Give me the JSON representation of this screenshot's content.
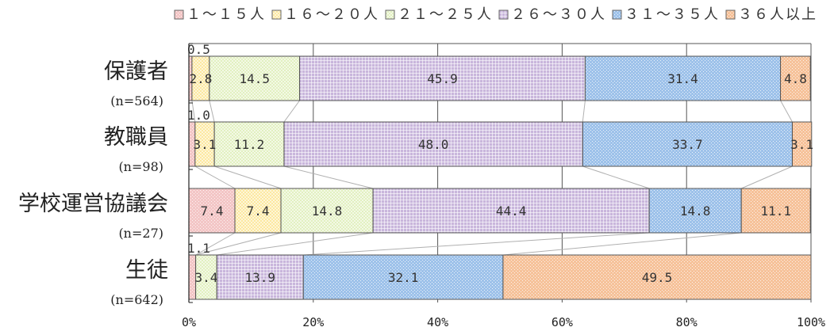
{
  "chart_data": {
    "type": "bar",
    "orientation": "horizontal",
    "stacked": "percent",
    "categories": [
      {
        "name": "保護者",
        "n": "(n=564)"
      },
      {
        "name": "教職員",
        "n": "(n=98)"
      },
      {
        "name": "学校運営協議会",
        "n": "(n=27)"
      },
      {
        "name": "生徒",
        "n": "(n=642)"
      }
    ],
    "series": [
      {
        "name": "１～１５人",
        "color": "#f3c6c6",
        "pattern": "dots",
        "values": [
          0.5,
          1.0,
          7.4,
          1.1
        ],
        "labels": [
          "0.5",
          "1.0",
          "7.4",
          "1.1"
        ]
      },
      {
        "name": "１６～２０人",
        "color": "#fce8a0",
        "pattern": "checker",
        "values": [
          2.8,
          3.1,
          7.4,
          0.0
        ],
        "labels": [
          "2.8",
          "3.1",
          "7.4",
          ""
        ]
      },
      {
        "name": "２１～２５人",
        "color": "#e2f0c0",
        "pattern": "checker",
        "values": [
          14.5,
          11.2,
          14.8,
          3.4
        ],
        "labels": [
          "14.5",
          "11.2",
          "14.8",
          "3.4"
        ]
      },
      {
        "name": "２６～３０人",
        "color": "#c9b6dc",
        "pattern": "grid",
        "values": [
          45.9,
          48.0,
          44.4,
          13.9
        ],
        "labels": [
          "45.9",
          "48.0",
          "44.4",
          "13.9"
        ]
      },
      {
        "name": "３１～３５人",
        "color": "#9ec2ea",
        "pattern": "dots",
        "values": [
          31.4,
          33.7,
          14.8,
          32.1
        ],
        "labels": [
          "31.4",
          "33.7",
          "14.8",
          "32.1"
        ]
      },
      {
        "name": "３６人以上",
        "color": "#f6c29a",
        "pattern": "dots",
        "values": [
          4.8,
          3.1,
          11.1,
          49.5
        ],
        "labels": [
          "4.8",
          "3.1",
          "11.1",
          "49.5"
        ]
      }
    ],
    "xlim": [
      0,
      100
    ],
    "xticks": [
      "0%",
      "20%",
      "40%",
      "60%",
      "80%",
      "100%"
    ],
    "grid": true,
    "legend_position": "top",
    "connector_lines": true
  }
}
